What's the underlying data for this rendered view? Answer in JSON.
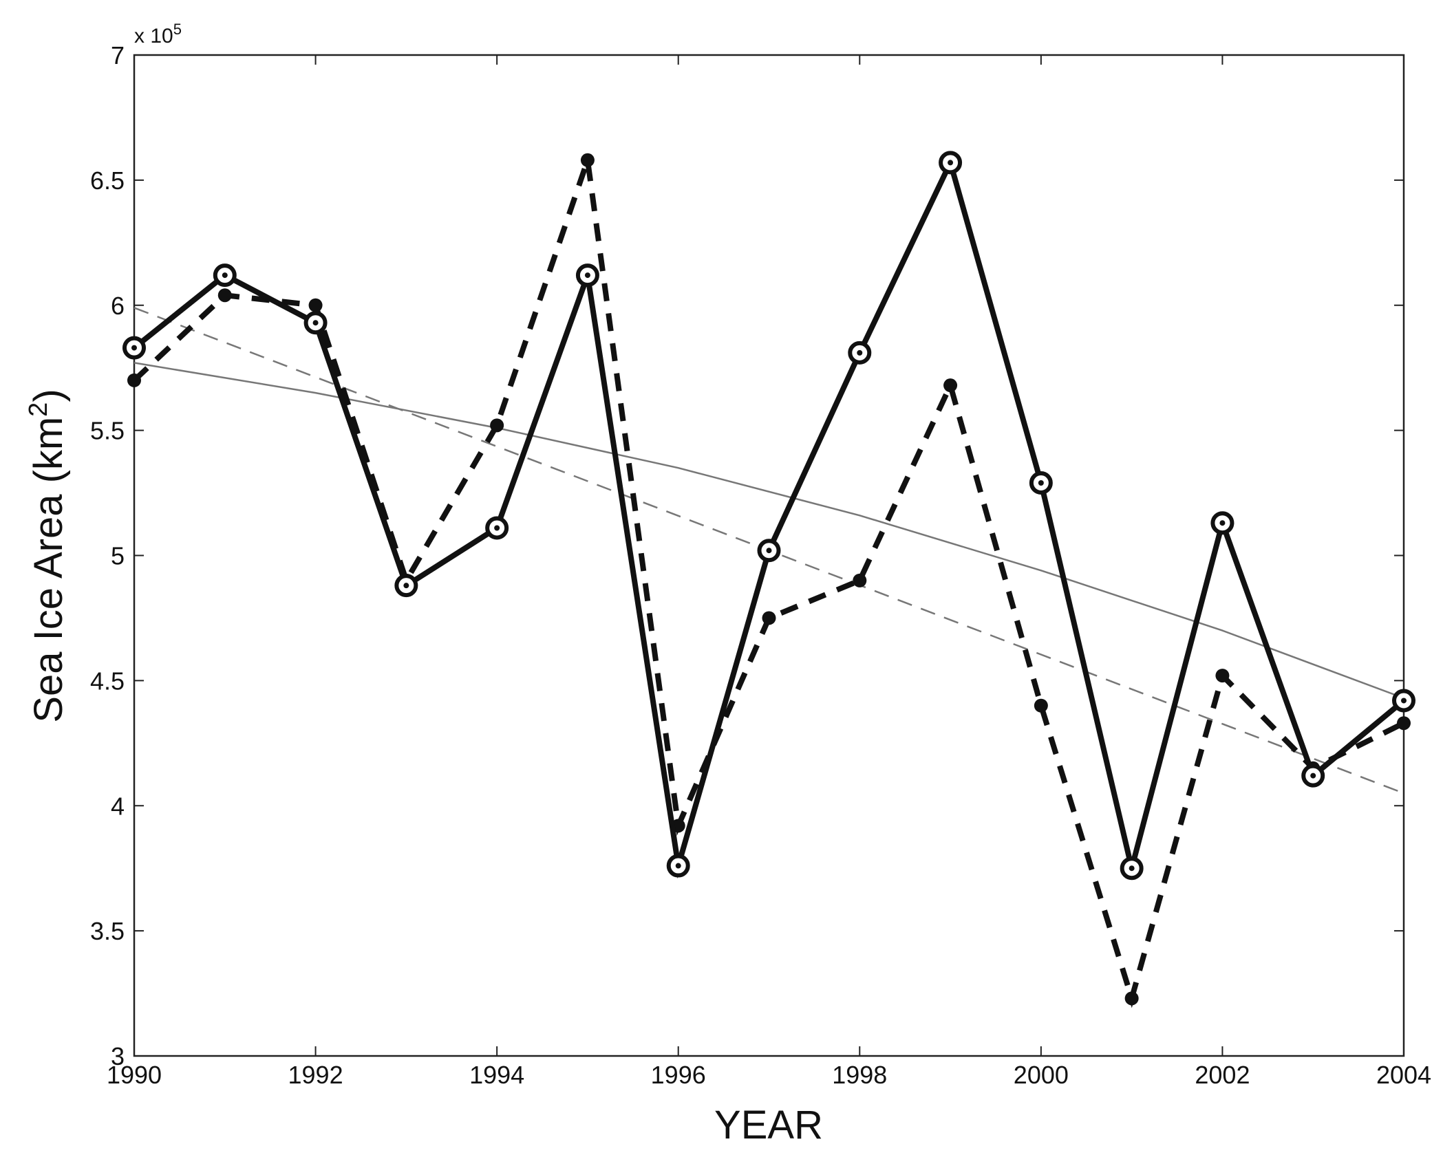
{
  "chart_data": {
    "type": "line",
    "xlabel": "YEAR",
    "ylabel": "Sea Ice Area (km",
    "ylabel_sup": "2",
    "ylabel_close": ")",
    "y_multiplier": "x 10",
    "y_multiplier_exp": "5",
    "xlim": [
      1990,
      2004
    ],
    "ylim": [
      3,
      7
    ],
    "x_ticks": [
      1990,
      1992,
      1994,
      1996,
      1998,
      2000,
      2002,
      2004
    ],
    "x_tick_labels": [
      "1990",
      "1992",
      "1994",
      "1996",
      "1998",
      "2000",
      "2002",
      "2004"
    ],
    "y_ticks": [
      3,
      3.5,
      4,
      4.5,
      5,
      5.5,
      6,
      6.5,
      7
    ],
    "y_tick_labels": [
      "3",
      "3.5",
      "4",
      "4.5",
      "5",
      "5.5",
      "6",
      "6.5",
      "7"
    ],
    "grid": false,
    "legend": false,
    "x": [
      1990,
      1991,
      1992,
      1993,
      1994,
      1995,
      1996,
      1997,
      1998,
      1999,
      2000,
      2001,
      2002,
      2003,
      2004
    ],
    "series": [
      {
        "style": "solid-circles",
        "color": "#111111",
        "values": [
          5.83,
          6.12,
          5.93,
          4.88,
          5.11,
          6.12,
          3.76,
          5.02,
          5.81,
          6.57,
          5.29,
          3.75,
          5.13,
          4.12,
          4.42
        ]
      },
      {
        "style": "dashed-dots",
        "color": "#111111",
        "values": [
          5.7,
          6.04,
          6.0,
          4.9,
          5.52,
          6.58,
          3.92,
          4.75,
          4.9,
          5.68,
          4.4,
          3.23,
          4.52,
          4.15,
          4.33
        ]
      },
      {
        "style": "thin-solid-trend",
        "color": "#777777",
        "x": [
          1990,
          1992,
          1994,
          1996,
          1998,
          2000,
          2002,
          2004
        ],
        "values": [
          5.77,
          5.65,
          5.51,
          5.35,
          5.16,
          4.94,
          4.7,
          4.43
        ]
      },
      {
        "style": "thin-dashed-trend",
        "color": "#777777",
        "x": [
          1990,
          2004
        ],
        "values": [
          5.99,
          4.05
        ]
      }
    ]
  }
}
